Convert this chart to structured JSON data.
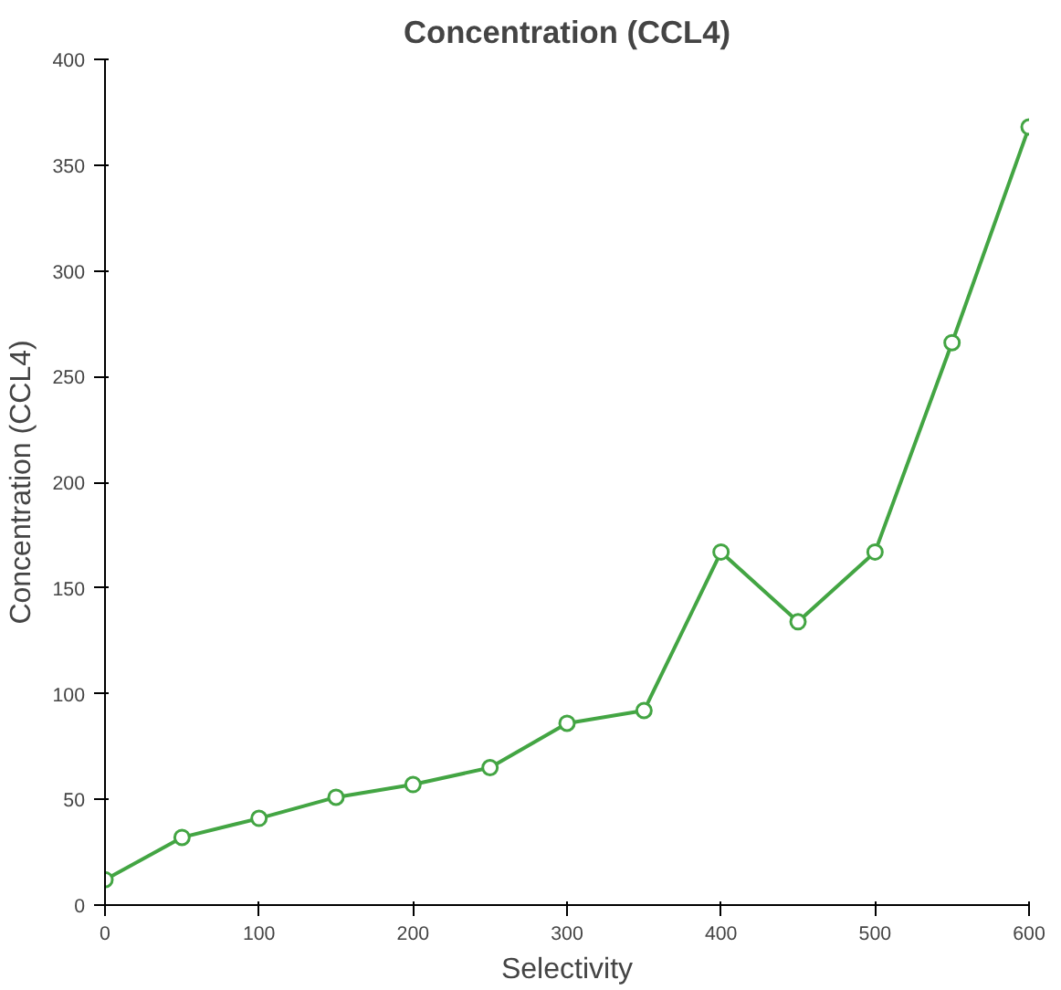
{
  "chart_data": {
    "type": "line",
    "title": "Concentration (CCL4)",
    "xlabel": "Selectivity",
    "ylabel": "Concentration (CCL4)",
    "x": [
      0,
      50,
      100,
      150,
      200,
      250,
      300,
      350,
      400,
      450,
      500,
      550,
      600
    ],
    "series": [
      {
        "color": "#43a543",
        "values": [
          12,
          32,
          41,
          51,
          57,
          65,
          86,
          92,
          167,
          134,
          167,
          266,
          368
        ]
      }
    ],
    "xlim": [
      0,
      600
    ],
    "xticks": [
      0,
      100,
      200,
      300,
      400,
      500,
      600
    ],
    "ylim": [
      0,
      400
    ],
    "yticks": [
      0,
      50,
      100,
      150,
      200,
      250,
      300,
      350,
      400
    ],
    "grid": false,
    "marker": "circle",
    "line_style": "solid"
  }
}
